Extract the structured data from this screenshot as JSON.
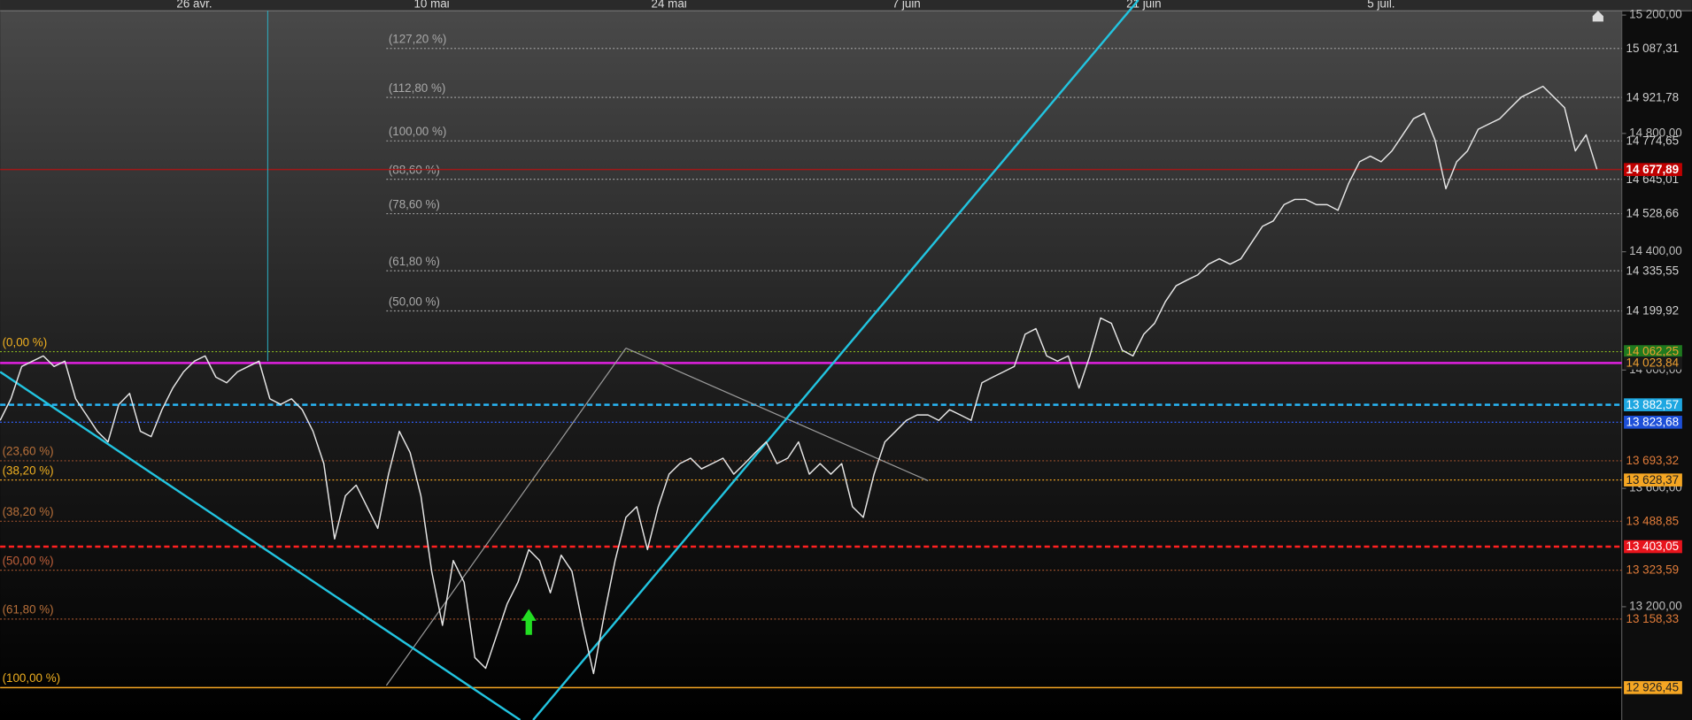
{
  "chart_data": {
    "type": "line",
    "categories": [
      null,
      null,
      null,
      null,
      null,
      null,
      null,
      null,
      null,
      null,
      null,
      null,
      null,
      null,
      null,
      null,
      null,
      null,
      "26 avr.",
      null,
      null,
      null,
      null,
      null,
      null,
      null,
      null,
      null,
      null,
      null,
      null,
      null,
      null,
      null,
      null,
      null,
      null,
      null,
      null,
      null,
      "10 mai",
      null,
      null,
      null,
      null,
      null,
      null,
      null,
      null,
      null,
      null,
      null,
      null,
      null,
      null,
      null,
      null,
      null,
      null,
      null,
      null,
      null,
      "24 mai",
      null,
      null,
      null,
      null,
      null,
      null,
      null,
      null,
      null,
      null,
      null,
      null,
      null,
      null,
      null,
      null,
      null,
      null,
      null,
      null,
      null,
      "7 juin",
      null,
      null,
      null,
      null,
      null,
      null,
      null,
      null,
      null,
      null,
      null,
      null,
      null,
      null,
      null,
      null,
      null,
      null,
      null,
      null,
      null,
      "21 juin",
      null,
      null,
      null,
      null,
      null,
      null,
      null,
      null,
      null,
      null,
      null,
      null,
      null,
      null,
      null,
      null,
      null,
      null,
      null,
      null,
      null,
      "5 juil.",
      null,
      null,
      null,
      null,
      null,
      null,
      null,
      null,
      null,
      null,
      null,
      null,
      null,
      null,
      null,
      null,
      null,
      null,
      null,
      null
    ],
    "values": [
      13830,
      13903,
      14012,
      14030,
      14048,
      14012,
      14030,
      13903,
      13848,
      13793,
      13757,
      13884,
      13921,
      13793,
      13775,
      13866,
      13939,
      13994,
      14030,
      14048,
      13976,
      13957,
      13994,
      14012,
      14030,
      13903,
      13884,
      13903,
      13866,
      13793,
      13684,
      13429,
      13575,
      13611,
      13538,
      13465,
      13648,
      13793,
      13721,
      13575,
      13320,
      13137,
      13356,
      13283,
      13028,
      12992,
      13101,
      13210,
      13283,
      13393,
      13356,
      13247,
      13374,
      13320,
      13137,
      12974,
      13174,
      13356,
      13502,
      13538,
      13393,
      13538,
      13648,
      13684,
      13702,
      13666,
      13684,
      13702,
      13648,
      13684,
      13721,
      13757,
      13684,
      13702,
      13757,
      13648,
      13684,
      13648,
      13684,
      13538,
      13502,
      13648,
      13757,
      13793,
      13830,
      13848,
      13848,
      13830,
      13866,
      13848,
      13830,
      13957,
      13976,
      13994,
      14012,
      14121,
      14140,
      14048,
      14030,
      14048,
      13939,
      14048,
      14176,
      14158,
      14067,
      14048,
      14121,
      14158,
      14231,
      14285,
      14304,
      14322,
      14358,
      14376,
      14358,
      14376,
      14431,
      14486,
      14504,
      14559,
      14577,
      14577,
      14559,
      14559,
      14540,
      14632,
      14704,
      14723,
      14704,
      14741,
      14795,
      14850,
      14868,
      14777,
      14613,
      14704,
      14741,
      14814,
      14832,
      14850,
      14887,
      14923,
      14941,
      14959,
      14923,
      14887,
      14741,
      14795,
      14679
    ],
    "color": "#e6e6e6",
    "ylim": [
      12817,
      15251
    ],
    "yticks": [
      {
        "value": 15200,
        "label": "15 200,00"
      },
      {
        "value": 14800,
        "label": "14 800,00"
      },
      {
        "value": 14400,
        "label": "14 400,00"
      },
      {
        "value": 14000,
        "label": "14 000,00"
      },
      {
        "value": 13600,
        "label": "13 600,00"
      },
      {
        "value": 13200,
        "label": "13 200,00"
      }
    ],
    "levels": [
      {
        "value": 15087.31,
        "label": "15 087,31",
        "fib": "(127,20 %)",
        "fib_color": "#a8a8a8",
        "line_color": "#a0a0a0",
        "style": "dotted",
        "extent": "partial",
        "text_color": "#cfcfcf"
      },
      {
        "value": 14921.78,
        "label": "14 921,78",
        "fib": "(112,80 %)",
        "fib_color": "#a8a8a8",
        "line_color": "#a0a0a0",
        "style": "dotted",
        "extent": "partial",
        "text_color": "#cfcfcf"
      },
      {
        "value": 14774.65,
        "label": "14 774,65",
        "fib": "(100,00 %)",
        "fib_color": "#a8a8a8",
        "line_color": "#a0a0a0",
        "style": "dotted",
        "extent": "partial",
        "text_color": "#cfcfcf"
      },
      {
        "value": 14645.01,
        "label": "14 645,01",
        "fib": "(88,60 %)",
        "fib_color": "#a8a8a8",
        "line_color": "#a0a0a0",
        "style": "dotted",
        "extent": "partial",
        "text_color": "#cfcfcf"
      },
      {
        "value": 14677.89,
        "label": "14 677,89",
        "line_color": "#a01818",
        "style": "solid",
        "extent": "full",
        "text_color": "#ffffff",
        "tag_color": "#c00000"
      },
      {
        "value": 14528.66,
        "label": "14 528,66",
        "fib": "(78,60 %)",
        "fib_color": "#a8a8a8",
        "line_color": "#a0a0a0",
        "style": "dotted",
        "extent": "partial",
        "text_color": "#cfcfcf"
      },
      {
        "value": 14335.55,
        "label": "14 335,55",
        "fib": "(61,80 %)",
        "fib_color": "#a8a8a8",
        "line_color": "#a0a0a0",
        "style": "dotted",
        "extent": "partial",
        "text_color": "#cfcfcf"
      },
      {
        "value": 14199.92,
        "label": "14 199,92",
        "fib": "(50,00 %)",
        "fib_color": "#a8a8a8",
        "line_color": "#a0a0a0",
        "style": "dotted",
        "extent": "partial",
        "text_color": "#cfcfcf"
      },
      {
        "value": 14062.25,
        "label": "14 062,25",
        "fib": "(0,00 %)",
        "fib_color": "#f0b020",
        "line_color": "#8fbf20",
        "style": "dotted",
        "extent": "full",
        "text_color": "#f0a030",
        "tag_color": "#1f7a1f"
      },
      {
        "value": 14023.84,
        "label": "14 023,84",
        "line_color": "#e020e0",
        "style": "solid",
        "extent": "full",
        "text_color": "#f0a030",
        "tag_color": "#1a1a1a"
      },
      {
        "value": 13882.57,
        "label": "13 882,57",
        "line_color": "#29b6f6",
        "style": "dashed",
        "extent": "full",
        "text_color": "#ffffff",
        "tag_color": "#1ea7e1"
      },
      {
        "value": 13823.68,
        "label": "13 823,68",
        "line_color": "#3060ff",
        "style": "dotted",
        "extent": "full",
        "text_color": "#ffffff",
        "tag_color": "#1d4fd8"
      },
      {
        "value": 13693.32,
        "label": "13 693,32",
        "fib": "(23,60 %)",
        "fib_color": "#b8703a",
        "line_color": "#a0522d",
        "style": "dotted",
        "extent": "full",
        "text_color": "#e07b39"
      },
      {
        "value": 13628.37,
        "label": "13 628,37",
        "fib": "(38,20 %)",
        "fib_color": "#f0b020",
        "line_color": "#f5a623",
        "style": "dotted",
        "extent": "full",
        "text_color": "#222222",
        "tag_color": "#f5a623"
      },
      {
        "value": 13488.85,
        "label": "13 488,85",
        "fib": "(38,20 %)",
        "fib_color": "#b8703a",
        "line_color": "#a0522d",
        "style": "dotted",
        "extent": "full",
        "text_color": "#e07b39"
      },
      {
        "value": 13403.05,
        "label": "13 403,05",
        "line_color": "#ff2020",
        "style": "dashed",
        "extent": "full",
        "text_color": "#ffffff",
        "tag_color": "#e8141c"
      },
      {
        "value": 13323.59,
        "label": "13 323,59",
        "fib": "(50,00 %)",
        "fib_color": "#c0603a",
        "line_color": "#a0522d",
        "style": "dotted",
        "extent": "full",
        "text_color": "#e07b39"
      },
      {
        "value": 13158.33,
        "label": "13 158,33",
        "fib": "(61,80 %)",
        "fib_color": "#b8703a",
        "line_color": "#a0522d",
        "style": "dotted",
        "extent": "full",
        "text_color": "#e07b39"
      },
      {
        "value": 12926.45,
        "label": "12 926,45",
        "fib": "(100,00 %)",
        "fib_color": "#f0b020",
        "line_color": "#f5a623",
        "style": "solid",
        "extent": "full",
        "text_color": "#222222",
        "tag_color": "#f5a623"
      }
    ]
  }
}
